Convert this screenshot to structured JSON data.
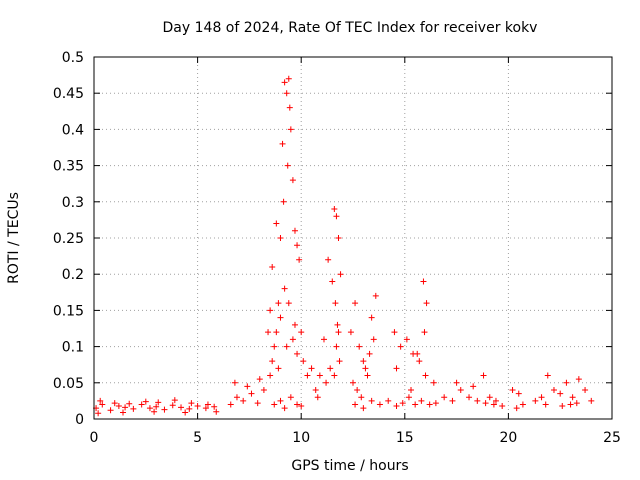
{
  "chart_data": {
    "type": "scatter",
    "title": "Day 148 of 2024, Rate Of TEC Index for receiver kokv",
    "xlabel": "GPS time / hours",
    "ylabel": "ROTI / TECUs",
    "xlim": [
      0,
      25
    ],
    "ylim": [
      0,
      0.5
    ],
    "xticks": [
      0,
      5,
      10,
      15,
      20,
      25
    ],
    "xtick_labels": [
      "0",
      "5",
      "10",
      "15",
      "20",
      "25"
    ],
    "yticks": [
      0,
      0.05,
      0.1,
      0.15,
      0.2,
      0.25,
      0.3,
      0.35,
      0.4,
      0.45,
      0.5
    ],
    "ytick_labels": [
      "0",
      "0.05",
      "0.1",
      "0.15",
      "0.2",
      "0.25",
      "0.3",
      "0.35",
      "0.4",
      "0.45",
      "0.5"
    ],
    "grid": true,
    "marker": "plus",
    "color": "#ff0000",
    "series": [
      {
        "name": "ROTI",
        "x": [
          0.1,
          0.4,
          0.8,
          1.2,
          1.5,
          1.9,
          2.3,
          2.7,
          3.0,
          3.4,
          3.8,
          4.2,
          4.6,
          5.0,
          5.4,
          5.8,
          0.3,
          1.0,
          1.7,
          2.5,
          3.1,
          3.9,
          4.7,
          5.5,
          0.2,
          1.4,
          2.9,
          4.4,
          5.9,
          6.6,
          6.9,
          7.2,
          7.6,
          7.9,
          8.2,
          6.8,
          7.4,
          8.0,
          8.4,
          8.5,
          8.6,
          8.7,
          8.8,
          8.9,
          9.0,
          9.1,
          9.15,
          9.2,
          9.3,
          9.35,
          9.4,
          9.45,
          9.5,
          9.6,
          9.7,
          9.8,
          9.9,
          8.6,
          8.8,
          9.0,
          9.2,
          9.4,
          9.6,
          9.8,
          10.0,
          8.5,
          8.9,
          9.3,
          9.7,
          10.1,
          10.3,
          10.5,
          8.7,
          9.0,
          9.2,
          9.5,
          9.8,
          10.0,
          10.7,
          10.9,
          11.1,
          11.3,
          11.5,
          11.6,
          11.7,
          11.8,
          11.9,
          11.65,
          11.75,
          11.7,
          11.85,
          11.6,
          11.8,
          10.8,
          11.2,
          11.4,
          12.4,
          12.6,
          12.8,
          13.0,
          13.2,
          13.4,
          13.6,
          12.5,
          12.7,
          12.9,
          13.1,
          13.3,
          13.5,
          12.6,
          13.0,
          13.4,
          13.8,
          14.2,
          14.6,
          14.9,
          15.2,
          15.5,
          15.8,
          16.2,
          16.5,
          16.9,
          17.3,
          17.7,
          18.1,
          18.5,
          18.9,
          19.3,
          19.7,
          14.5,
          14.8,
          15.1,
          15.4,
          15.7,
          16.0,
          16.4,
          14.6,
          15.3,
          15.6,
          15.9,
          16.05,
          15.95,
          17.5,
          18.3,
          18.8,
          19.1,
          19.4,
          20.2,
          20.5,
          20.7,
          20.4,
          21.3,
          21.6,
          21.9,
          22.2,
          22.5,
          22.8,
          23.1,
          23.4,
          23.7,
          24.0,
          21.8,
          22.6,
          23.0,
          23.3
        ],
        "y": [
          0.015,
          0.02,
          0.012,
          0.018,
          0.016,
          0.014,
          0.02,
          0.015,
          0.017,
          0.013,
          0.019,
          0.016,
          0.014,
          0.018,
          0.015,
          0.017,
          0.025,
          0.022,
          0.021,
          0.024,
          0.023,
          0.026,
          0.022,
          0.02,
          0.008,
          0.009,
          0.01,
          0.009,
          0.01,
          0.02,
          0.03,
          0.025,
          0.035,
          0.022,
          0.04,
          0.05,
          0.045,
          0.055,
          0.12,
          0.15,
          0.21,
          0.1,
          0.27,
          0.16,
          0.25,
          0.38,
          0.3,
          0.465,
          0.45,
          0.35,
          0.47,
          0.43,
          0.4,
          0.33,
          0.26,
          0.24,
          0.22,
          0.08,
          0.12,
          0.14,
          0.18,
          0.16,
          0.11,
          0.09,
          0.12,
          0.06,
          0.07,
          0.1,
          0.13,
          0.08,
          0.06,
          0.07,
          0.02,
          0.025,
          0.015,
          0.03,
          0.02,
          0.018,
          0.04,
          0.06,
          0.11,
          0.22,
          0.19,
          0.29,
          0.28,
          0.25,
          0.2,
          0.16,
          0.13,
          0.1,
          0.08,
          0.06,
          0.12,
          0.03,
          0.05,
          0.07,
          0.12,
          0.16,
          0.1,
          0.08,
          0.06,
          0.14,
          0.17,
          0.05,
          0.04,
          0.03,
          0.07,
          0.09,
          0.11,
          0.02,
          0.015,
          0.025,
          0.02,
          0.025,
          0.018,
          0.022,
          0.03,
          0.02,
          0.025,
          0.02,
          0.022,
          0.03,
          0.025,
          0.04,
          0.03,
          0.025,
          0.022,
          0.02,
          0.018,
          0.12,
          0.1,
          0.11,
          0.09,
          0.08,
          0.06,
          0.05,
          0.07,
          0.04,
          0.09,
          0.19,
          0.16,
          0.12,
          0.05,
          0.045,
          0.06,
          0.03,
          0.025,
          0.04,
          0.035,
          0.02,
          0.015,
          0.025,
          0.03,
          0.06,
          0.04,
          0.035,
          0.05,
          0.03,
          0.055,
          0.04,
          0.025,
          0.02,
          0.018,
          0.02,
          0.022
        ]
      }
    ]
  }
}
